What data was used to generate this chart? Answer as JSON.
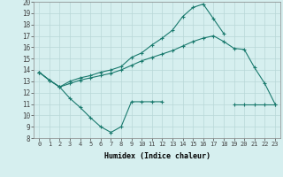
{
  "xlabel": "Humidex (Indice chaleur)",
  "x": [
    0,
    1,
    2,
    3,
    4,
    5,
    6,
    7,
    8,
    9,
    10,
    11,
    12,
    13,
    14,
    15,
    16,
    17,
    18,
    19,
    20,
    21,
    22,
    23
  ],
  "line1_x": [
    0,
    1,
    2,
    3,
    4,
    5,
    6,
    7,
    8,
    9,
    10,
    11,
    12,
    13,
    14,
    15,
    16,
    17,
    18,
    19,
    20,
    21,
    22,
    23
  ],
  "line1_y": [
    13.8,
    13.1,
    12.5,
    12.8,
    13.1,
    13.3,
    13.5,
    13.7,
    14.0,
    14.4,
    14.8,
    15.1,
    15.4,
    15.7,
    16.1,
    16.5,
    16.8,
    17.0,
    16.5,
    15.9,
    15.8,
    14.2,
    12.8,
    11.0
  ],
  "line2_x": [
    0,
    1,
    2,
    3,
    4,
    5,
    6,
    7,
    8,
    9,
    10,
    11,
    12,
    19,
    20,
    21,
    22,
    23
  ],
  "line2_y": [
    13.8,
    13.1,
    12.5,
    11.5,
    10.7,
    9.8,
    9.0,
    8.5,
    9.0,
    11.2,
    11.2,
    11.2,
    11.2,
    11.0,
    11.0,
    11.0,
    11.0,
    11.0
  ],
  "line3_x": [
    0,
    1,
    2,
    3,
    4,
    5,
    6,
    7,
    8,
    9,
    10,
    11,
    12,
    13,
    14,
    15,
    16,
    17,
    18
  ],
  "line3_y": [
    13.8,
    13.1,
    12.5,
    13.0,
    13.3,
    13.5,
    13.8,
    14.0,
    14.3,
    15.1,
    15.5,
    16.2,
    16.8,
    17.5,
    18.7,
    19.5,
    19.8,
    18.5,
    17.2
  ],
  "line_color": "#1a7a6e",
  "bg_color": "#d6efef",
  "grid_color": "#b8d8d8",
  "ylim": [
    8,
    20
  ],
  "xlim": [
    -0.5,
    23.5
  ],
  "yticks": [
    8,
    9,
    10,
    11,
    12,
    13,
    14,
    15,
    16,
    17,
    18,
    19,
    20
  ],
  "xticks": [
    0,
    1,
    2,
    3,
    4,
    5,
    6,
    7,
    8,
    9,
    10,
    11,
    12,
    13,
    14,
    15,
    16,
    17,
    18,
    19,
    20,
    21,
    22,
    23
  ],
  "tick_fontsize": 5,
  "xlabel_fontsize": 6
}
